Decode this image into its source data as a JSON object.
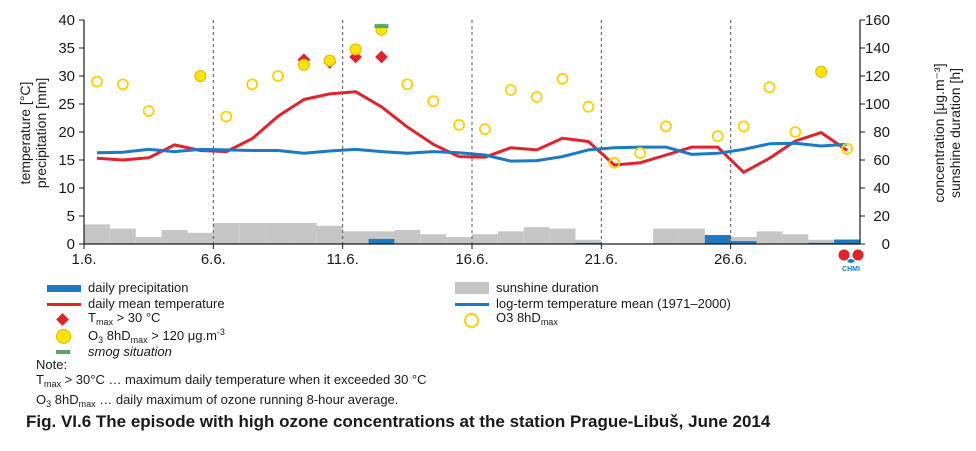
{
  "chart_data": {
    "type": "combo",
    "title": "",
    "x_tick_labels": [
      "1.6.",
      "6.6.",
      "11.6.",
      "16.6.",
      "21.6.",
      "26.6."
    ],
    "x_tick_days": [
      1,
      6,
      11,
      16,
      21,
      26
    ],
    "y_left_label_line1": "temperature   [°C]",
    "y_left_label_line2": "precipitation [mm]",
    "y_left_ticks": [
      0,
      5,
      10,
      15,
      20,
      25,
      30,
      35,
      40
    ],
    "y_left_range": [
      0,
      40
    ],
    "y_right_label_line1": "concentration [μg.m⁻³]",
    "y_right_label_line2": "sunshine duration [h]",
    "y_right_ticks": [
      0,
      20,
      40,
      60,
      80,
      100,
      120,
      140,
      160
    ],
    "y_right_range": [
      0,
      160
    ],
    "days": [
      1,
      2,
      3,
      4,
      5,
      6,
      7,
      8,
      9,
      10,
      11,
      12,
      13,
      14,
      15,
      16,
      17,
      18,
      19,
      20,
      21,
      22,
      23,
      24,
      25,
      26,
      27,
      28,
      29,
      30
    ],
    "series": [
      {
        "name": "daily precipitation",
        "axis": "left",
        "kind": "bar",
        "color": "#1a7ac6",
        "values": [
          0,
          0,
          0,
          0,
          0,
          0,
          0,
          0,
          0,
          0,
          0,
          0.9,
          0,
          0,
          0,
          0,
          0,
          0,
          0,
          0.2,
          0,
          0,
          0,
          0,
          1.6,
          0.5,
          0,
          0,
          0.2,
          0.8
        ]
      },
      {
        "name": "sunshine duration",
        "axis": "right",
        "kind": "bar",
        "color": "#c6c6c6",
        "values": [
          14,
          11,
          5,
          10,
          8,
          15,
          15,
          15,
          15,
          13,
          9,
          9,
          10,
          7,
          5,
          7,
          9,
          12,
          11,
          3,
          0,
          0,
          11,
          11,
          2,
          5,
          9,
          7,
          3,
          1
        ]
      },
      {
        "name": "daily mean temperature",
        "axis": "left",
        "kind": "line",
        "color": "#e3232b",
        "values": [
          15.3,
          15.0,
          15.4,
          17.7,
          16.7,
          16.5,
          18.8,
          22.8,
          25.8,
          26.8,
          27.2,
          24.5,
          20.9,
          17.8,
          15.6,
          15.5,
          17.2,
          16.8,
          18.9,
          18.3,
          14.1,
          14.5,
          15.9,
          17.3,
          17.3,
          12.8,
          15.3,
          18.4,
          19.9,
          16.7
        ]
      },
      {
        "name": "log-term temperature mean (1971–2000)",
        "axis": "left",
        "kind": "line",
        "color": "#1a7ac6",
        "values": [
          16.3,
          16.4,
          16.9,
          16.5,
          16.9,
          16.8,
          16.7,
          16.7,
          16.2,
          16.6,
          16.9,
          16.5,
          16.2,
          16.5,
          16.3,
          15.9,
          14.8,
          14.9,
          15.6,
          16.8,
          17.2,
          17.3,
          17.3,
          16.0,
          16.2,
          16.9,
          17.9,
          18.0,
          17.5,
          17.8
        ]
      },
      {
        "name": "T_max > 30 °C",
        "axis": "left",
        "kind": "marker",
        "marker": "diamond",
        "color": "#e3232b",
        "days": [
          9,
          10,
          11,
          12
        ],
        "values": [
          32.9,
          32.4,
          33.4,
          33.4
        ]
      },
      {
        "name": "O3 8hDmax > 120 μg.m-3",
        "axis": "right",
        "kind": "marker",
        "marker": "filled-circle",
        "color": "#ffe400",
        "days": [
          5,
          9,
          10,
          11,
          12,
          29
        ],
        "values": [
          120,
          128,
          131,
          139,
          153,
          123
        ]
      },
      {
        "name": "O3 8hDmax",
        "axis": "right",
        "kind": "marker",
        "marker": "open-circle",
        "color": "#ffd000",
        "days": [
          1,
          2,
          3,
          6,
          7,
          8,
          13,
          14,
          15,
          16,
          17,
          18,
          19,
          20,
          21,
          22,
          23,
          25,
          26,
          27,
          28,
          30
        ],
        "values": [
          116,
          114,
          95,
          91,
          114,
          120,
          114,
          102,
          85,
          82,
          110,
          105,
          118,
          98,
          58,
          65,
          84,
          77,
          84,
          112,
          80,
          68
        ]
      },
      {
        "name": "smog situation",
        "axis": "left",
        "kind": "marker",
        "marker": "dash",
        "color": "#5aa66e",
        "days": [
          12
        ],
        "values": [
          38.9
        ]
      }
    ]
  },
  "legend": {
    "precip": "daily precipitation",
    "mean_temp": "daily mean temperature",
    "tmax_base": "T",
    "tmax_sub": "max",
    "tmax_rest": " > 30 °C",
    "o3hi_base": "O",
    "o3hi_sub": "3",
    "o3hi_mid": " 8hD",
    "o3hi_sub2": "max",
    "o3hi_rest": " > 120 μg.m",
    "o3hi_sup": "-3",
    "smog": "smog situation",
    "sunshine": "sunshine duration",
    "longterm": "log-term temperature mean (1971–2000)",
    "o3_base": "O3 8hD",
    "o3_sub": "max"
  },
  "note": {
    "title": "Note:",
    "line1_base": "T",
    "line1_sub": "max",
    "line1_rest": " > 30°C … maximum daily temperature when it exceeded 30 °C",
    "line2_base": "O",
    "line2_sub": "3",
    "line2_mid": " 8hD",
    "line2_sub2": "max",
    "line2_rest": " … daily maximum of ozone running 8-hour average."
  },
  "caption": "Fig. VI.6  The episode with high ozone concentrations at the station Prague-Libuš, June 2014",
  "logo": {
    "text": "CHMI",
    "icon": "chmi-logo-icon"
  },
  "colors": {
    "red": "#e3232b",
    "blue": "#1a7ac6",
    "grey": "#c6c6c6",
    "yellow": "#ffe400",
    "green": "#5aa66e"
  }
}
